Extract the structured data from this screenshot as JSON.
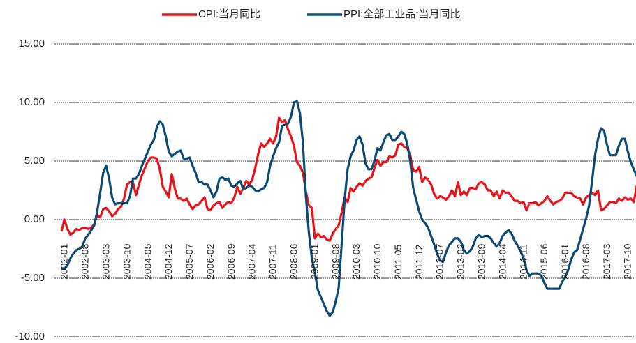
{
  "chart_data": {
    "type": "line",
    "categories": [
      "2002-01",
      null,
      null,
      null,
      null,
      null,
      null,
      "2002-08",
      null,
      null,
      null,
      null,
      null,
      null,
      "2003-03",
      null,
      null,
      null,
      null,
      null,
      null,
      "2003-10",
      null,
      null,
      null,
      null,
      null,
      null,
      "2004-05",
      null,
      null,
      null,
      null,
      null,
      null,
      "2004-12",
      null,
      null,
      null,
      null,
      null,
      null,
      "2005-07",
      null,
      null,
      null,
      null,
      null,
      null,
      "2006-02",
      null,
      null,
      null,
      null,
      null,
      null,
      "2006-09",
      null,
      null,
      null,
      null,
      null,
      null,
      "2007-04",
      null,
      null,
      null,
      null,
      null,
      null,
      "2007-11",
      null,
      null,
      null,
      null,
      null,
      null,
      "2008-06",
      null,
      null,
      null,
      null,
      null,
      null,
      "2009-01",
      null,
      null,
      null,
      null,
      null,
      null,
      "2009-08",
      null,
      null,
      null,
      null,
      null,
      null,
      "2010-03",
      null,
      null,
      null,
      null,
      null,
      null,
      "2010-10",
      null,
      null,
      null,
      null,
      null,
      null,
      "2011-05",
      null,
      null,
      null,
      null,
      null,
      null,
      "2011-12",
      null,
      null,
      null,
      null,
      null,
      null,
      "2012-07",
      null,
      null,
      null,
      null,
      null,
      null,
      "2013-02",
      null,
      null,
      null,
      null,
      null,
      null,
      "2013-09",
      null,
      null,
      null,
      null,
      null,
      null,
      "2014-04",
      null,
      null,
      null,
      null,
      null,
      null,
      "2014-11",
      null,
      null,
      null,
      null,
      null,
      null,
      "2015-06",
      null,
      null,
      null,
      null,
      null,
      null,
      "2016-01",
      null,
      null,
      null,
      null,
      null,
      null,
      "2016-08",
      null,
      null,
      null,
      null,
      null,
      null,
      "2017-03",
      null,
      null,
      null,
      null,
      null,
      null,
      "2017-10",
      null,
      null,
      null,
      null
    ],
    "series": [
      {
        "name": "CPI:当月同比",
        "color": "#e8131b",
        "values": [
          -1.0,
          0.0,
          -0.8,
          -1.3,
          -1.1,
          -0.8,
          -0.9,
          -0.7,
          -0.7,
          -0.8,
          -0.7,
          -0.4,
          0.4,
          0.2,
          0.9,
          1.0,
          0.7,
          0.3,
          0.5,
          0.9,
          1.1,
          1.8,
          3.0,
          3.2,
          3.2,
          2.1,
          3.0,
          3.8,
          4.4,
          5.0,
          5.3,
          5.3,
          5.2,
          4.3,
          2.8,
          2.4,
          1.9,
          3.9,
          2.7,
          1.8,
          1.8,
          1.6,
          1.8,
          1.3,
          0.9,
          1.2,
          1.3,
          1.6,
          1.9,
          0.9,
          0.8,
          1.2,
          1.4,
          1.5,
          1.0,
          1.3,
          1.5,
          1.4,
          1.9,
          2.8,
          2.2,
          2.7,
          3.3,
          3.0,
          3.4,
          4.4,
          5.6,
          6.5,
          6.2,
          6.5,
          6.9,
          6.5,
          7.1,
          8.7,
          8.3,
          8.5,
          7.7,
          7.1,
          6.3,
          4.9,
          4.6,
          4.0,
          2.4,
          1.2,
          1.0,
          -1.6,
          -1.2,
          -1.5,
          -1.4,
          -1.7,
          -1.8,
          -1.2,
          -0.8,
          -0.5,
          0.6,
          1.9,
          1.5,
          2.7,
          2.4,
          2.8,
          3.1,
          2.9,
          3.3,
          3.5,
          3.6,
          4.4,
          5.1,
          4.6,
          4.9,
          4.9,
          5.4,
          5.3,
          5.5,
          6.4,
          6.5,
          6.2,
          6.1,
          5.5,
          4.2,
          4.1,
          4.5,
          3.2,
          3.6,
          3.4,
          3.0,
          2.2,
          1.8,
          2.0,
          1.9,
          1.7,
          2.0,
          2.5,
          2.0,
          3.2,
          2.1,
          2.4,
          2.1,
          2.7,
          2.7,
          2.6,
          3.1,
          3.2,
          3.0,
          2.5,
          2.5,
          2.0,
          2.4,
          1.8,
          2.5,
          2.3,
          2.3,
          2.0,
          1.6,
          1.6,
          1.4,
          1.5,
          0.8,
          1.4,
          1.4,
          1.5,
          1.2,
          1.4,
          1.6,
          2.0,
          1.6,
          1.3,
          1.5,
          1.6,
          1.8,
          2.3,
          2.3,
          2.3,
          2.0,
          1.9,
          1.8,
          1.3,
          1.9,
          2.1,
          2.3,
          2.1,
          2.5,
          0.8,
          0.9,
          1.2,
          1.5,
          1.5,
          1.4,
          1.8,
          1.6,
          1.9,
          1.7,
          1.8,
          1.5,
          2.9
        ]
      },
      {
        "name": "PPI:全部工业品:当月同比",
        "color": "#0d4a73",
        "values": [
          -4.2,
          -4.2,
          -3.9,
          -3.3,
          -2.9,
          -2.6,
          -2.5,
          -2.3,
          -1.6,
          -1.3,
          -0.9,
          -0.5,
          0.7,
          2.3,
          4.0,
          4.6,
          3.5,
          1.9,
          1.3,
          1.4,
          1.4,
          1.4,
          1.4,
          2.0,
          3.5,
          3.5,
          3.9,
          4.6,
          5.2,
          5.8,
          6.4,
          6.8,
          7.9,
          8.4,
          8.1,
          7.1,
          5.8,
          5.4,
          5.6,
          5.8,
          5.9,
          5.2,
          5.2,
          5.3,
          4.6,
          4.0,
          3.2,
          3.2,
          3.0,
          3.0,
          2.5,
          1.9,
          2.4,
          3.5,
          3.6,
          3.4,
          3.5,
          2.9,
          2.8,
          3.1,
          3.3,
          2.6,
          2.7,
          2.9,
          2.8,
          2.5,
          2.4,
          2.6,
          2.7,
          3.2,
          4.6,
          5.4,
          6.1,
          6.6,
          8.0,
          8.1,
          8.2,
          8.8,
          10.0,
          10.1,
          9.1,
          6.6,
          2.0,
          -1.1,
          -3.3,
          -4.5,
          -6.0,
          -6.6,
          -7.2,
          -7.8,
          -8.2,
          -7.9,
          -7.0,
          -5.8,
          -2.1,
          1.7,
          4.3,
          5.4,
          5.9,
          6.8,
          7.1,
          6.4,
          4.8,
          4.3,
          4.3,
          5.0,
          6.1,
          5.9,
          6.6,
          7.2,
          7.3,
          6.8,
          6.8,
          7.1,
          7.5,
          7.3,
          6.5,
          5.0,
          2.7,
          1.7,
          0.7,
          0.0,
          -0.3,
          -0.7,
          -1.4,
          -2.1,
          -2.9,
          -3.5,
          -3.6,
          -2.8,
          -2.2,
          -1.9,
          -1.6,
          -1.6,
          -1.9,
          -2.6,
          -2.9,
          -2.7,
          -2.3,
          -1.6,
          -1.3,
          -1.5,
          -1.4,
          -1.4,
          -1.6,
          -2.0,
          -2.3,
          -2.0,
          -1.4,
          -1.1,
          -0.9,
          -1.2,
          -1.8,
          -2.2,
          -2.7,
          -3.3,
          -4.3,
          -4.8,
          -4.6,
          -4.6,
          -4.6,
          -4.8,
          -5.4,
          -5.9,
          -5.9,
          -5.9,
          -5.9,
          -5.9,
          -5.3,
          -4.9,
          -4.3,
          -3.4,
          -2.8,
          -2.6,
          -1.7,
          -0.8,
          0.1,
          1.2,
          3.3,
          5.5,
          6.9,
          7.8,
          7.6,
          6.4,
          5.5,
          5.5,
          5.5,
          6.3,
          6.9,
          6.9,
          5.8,
          4.9,
          4.3,
          3.7
        ]
      }
    ],
    "ylim": [
      -10,
      15
    ],
    "yticks": [
      {
        "value": -10,
        "label": "-10.00"
      },
      {
        "value": -5,
        "label": "-5.00"
      },
      {
        "value": 0,
        "label": "0.00"
      },
      {
        "value": 5,
        "label": "5.00"
      },
      {
        "value": 10,
        "label": "10.00"
      },
      {
        "value": 15,
        "label": "15.00"
      }
    ],
    "grid": true,
    "legend": "top"
  }
}
